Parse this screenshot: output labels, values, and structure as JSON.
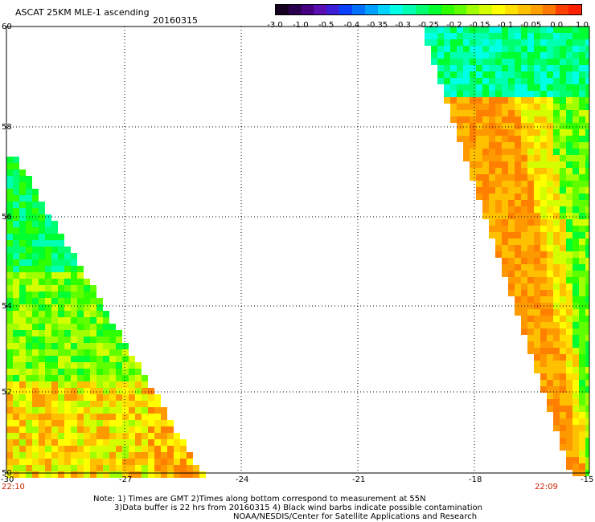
{
  "header": {
    "title": "ASCAT 25KM MLE-1 ascending",
    "date": "20160315"
  },
  "colorbar": {
    "labels": [
      "-3.0",
      "-1.0",
      "-0.5",
      "-0.4",
      "-0.35",
      "-0.3",
      "-0.25",
      "-0.2",
      "-0.15",
      "-0.1",
      "-0.05",
      "0.0",
      "1.0"
    ],
    "colors": [
      "#14001e",
      "#2a0050",
      "#440080",
      "#5a10b0",
      "#3c20d8",
      "#0a40ff",
      "#0070ff",
      "#00a0ff",
      "#00d4ff",
      "#00ffe6",
      "#00ffb0",
      "#00ff70",
      "#00ff30",
      "#30ff00",
      "#60ff00",
      "#a0ff00",
      "#d4ff00",
      "#ffff00",
      "#ffe000",
      "#ffc000",
      "#ffa000",
      "#ff7800",
      "#ff4000",
      "#ff2000"
    ]
  },
  "map": {
    "y_axis_labels": [
      "60",
      "58",
      "56",
      "54",
      "52",
      "50"
    ],
    "x_axis_labels": [
      "-30",
      "-27",
      "-24",
      "-21",
      "-18",
      "-15"
    ],
    "left_time": "22:10",
    "right_time": "22:09",
    "time_color": "#cc2200"
  },
  "notes": {
    "line1": "Note: 1) Times are GMT 2)Times along bottom correspond to measurement at 55N",
    "line2": "3)Data buffer is 22 hrs from 20160315 4) Black wind barbs indicate possible contamination",
    "line3": "NOAA/NESDIS/Center for Satellite Applications and Research"
  }
}
